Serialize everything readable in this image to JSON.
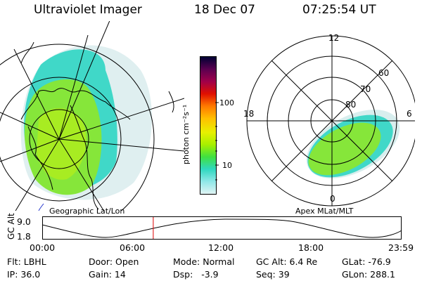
{
  "header": {
    "instrument": "Ultraviolet Imager",
    "date": "18 Dec 07",
    "time": "07:25:54 UT"
  },
  "left_panel": {
    "label": "Geographic Lat/Lon"
  },
  "right_panel": {
    "label": "Apex MLat/MLT",
    "mlt_labels": {
      "top": "12",
      "left": "18",
      "right": "6",
      "bottom": "0"
    },
    "lat_labels": [
      "60",
      "70",
      "80"
    ]
  },
  "colorbar": {
    "unit_label": "photon cm⁻²s⁻¹",
    "tick_labels": [
      "100",
      "10"
    ],
    "colors": [
      "#000033",
      "#5a0050",
      "#a0004a",
      "#e01000",
      "#ff7a00",
      "#ffc000",
      "#e8f000",
      "#a8f000",
      "#40e040",
      "#30d8c0",
      "#90e8e8",
      "#e0f4f4"
    ]
  },
  "timeline": {
    "axis_label": "GC Alt",
    "ymax": "9.0",
    "ymin": "1.8",
    "ticks": [
      "00:00",
      "06:00",
      "12:00",
      "18:00",
      "23:59"
    ],
    "current_time_hours": 7.43
  },
  "info": {
    "flt": "Flt: LBHL",
    "ip": "IP: 36.0",
    "door": "Door: Open",
    "gain": "Gain: 14",
    "mode": "Mode: Normal",
    "dsp": "Dsp:   -3.9",
    "gc_alt": "GC Alt: 6.4 Re",
    "seq": "Seq: 39",
    "glat": "GLat: -76.9",
    "glon": "GLon: 288.1"
  }
}
